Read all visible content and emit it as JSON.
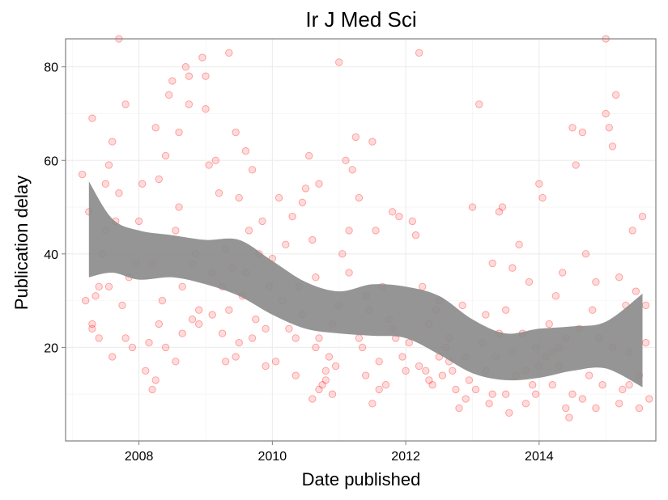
{
  "chart_data": {
    "type": "scatter",
    "title": "Ir J Med Sci",
    "xlabel": "Date published",
    "ylabel": "Publication delay",
    "xlim": [
      2006.9,
      2015.75
    ],
    "ylim": [
      0,
      86
    ],
    "x_ticks": [
      2008,
      2010,
      2012,
      2014
    ],
    "x_tick_labels": [
      "2008",
      "2010",
      "2012",
      "2014"
    ],
    "y_ticks": [
      20,
      40,
      60,
      80
    ],
    "y_tick_labels": [
      "20",
      "40",
      "60",
      "80"
    ],
    "grid": true,
    "point_color": "#ff0000",
    "band_color": "#8c8c8c",
    "smooth_band": {
      "x": [
        2007.25,
        2007.6,
        2008.0,
        2008.5,
        2009.0,
        2009.5,
        2010.0,
        2010.5,
        2011.0,
        2011.5,
        2012.0,
        2012.5,
        2013.0,
        2013.5,
        2014.0,
        2014.5,
        2015.0,
        2015.55
      ],
      "upper": [
        55.5,
        47.5,
        45.0,
        44.0,
        43.0,
        43.0,
        38.5,
        34.0,
        32.0,
        33.5,
        33.0,
        31.0,
        26.0,
        23.0,
        24.0,
        24.5,
        25.5,
        31.5
      ],
      "lower": [
        35.0,
        36.0,
        34.5,
        35.0,
        33.5,
        31.0,
        27.0,
        24.0,
        23.0,
        22.5,
        22.0,
        18.5,
        14.5,
        13.0,
        13.5,
        15.0,
        15.5,
        11.5
      ]
    },
    "points": [
      [
        2007.15,
        57
      ],
      [
        2007.2,
        30
      ],
      [
        2007.25,
        49
      ],
      [
        2007.3,
        69
      ],
      [
        2007.3,
        25
      ],
      [
        2007.35,
        31
      ],
      [
        2007.4,
        33
      ],
      [
        2007.45,
        40
      ],
      [
        2007.5,
        55
      ],
      [
        2007.55,
        59
      ],
      [
        2007.55,
        33
      ],
      [
        2007.6,
        64
      ],
      [
        2007.65,
        47
      ],
      [
        2007.7,
        53
      ],
      [
        2007.75,
        29
      ],
      [
        2007.8,
        72
      ],
      [
        2007.85,
        35
      ],
      [
        2007.9,
        20
      ],
      [
        2007.95,
        38
      ],
      [
        2008.0,
        47
      ],
      [
        2007.7,
        86
      ],
      [
        2007.3,
        24
      ],
      [
        2007.4,
        22
      ],
      [
        2007.5,
        45
      ],
      [
        2007.6,
        18
      ],
      [
        2007.8,
        22
      ],
      [
        2008.05,
        55
      ],
      [
        2008.1,
        15
      ],
      [
        2008.15,
        21
      ],
      [
        2008.2,
        38
      ],
      [
        2008.2,
        11
      ],
      [
        2008.25,
        67
      ],
      [
        2008.3,
        56
      ],
      [
        2008.35,
        30
      ],
      [
        2008.4,
        61
      ],
      [
        2008.45,
        74
      ],
      [
        2008.5,
        77
      ],
      [
        2008.55,
        45
      ],
      [
        2008.55,
        17
      ],
      [
        2008.6,
        66
      ],
      [
        2008.6,
        50
      ],
      [
        2008.65,
        23
      ],
      [
        2008.7,
        80
      ],
      [
        2008.75,
        72
      ],
      [
        2008.75,
        78
      ],
      [
        2008.8,
        26
      ],
      [
        2008.8,
        38
      ],
      [
        2008.85,
        40
      ],
      [
        2008.9,
        25
      ],
      [
        2008.95,
        82
      ],
      [
        2009.0,
        78
      ],
      [
        2009.0,
        71
      ],
      [
        2009.05,
        59
      ],
      [
        2009.1,
        27
      ],
      [
        2009.1,
        36
      ],
      [
        2008.4,
        20
      ],
      [
        2008.3,
        25
      ],
      [
        2008.25,
        13
      ],
      [
        2008.65,
        33
      ],
      [
        2008.9,
        28
      ],
      [
        2009.15,
        60
      ],
      [
        2009.2,
        53
      ],
      [
        2009.25,
        23
      ],
      [
        2009.3,
        41
      ],
      [
        2009.3,
        17
      ],
      [
        2009.35,
        83
      ],
      [
        2009.4,
        37
      ],
      [
        2009.45,
        66
      ],
      [
        2009.5,
        52
      ],
      [
        2009.5,
        21
      ],
      [
        2009.55,
        31
      ],
      [
        2009.6,
        62
      ],
      [
        2009.65,
        45
      ],
      [
        2009.7,
        58
      ],
      [
        2009.75,
        26
      ],
      [
        2009.8,
        40
      ],
      [
        2009.85,
        47
      ],
      [
        2009.9,
        24
      ],
      [
        2009.95,
        33
      ],
      [
        2010.0,
        39
      ],
      [
        2009.6,
        36
      ],
      [
        2009.35,
        28
      ],
      [
        2009.45,
        18
      ],
      [
        2009.7,
        22
      ],
      [
        2009.9,
        16
      ],
      [
        2009.25,
        33
      ],
      [
        2010.05,
        17
      ],
      [
        2010.1,
        52
      ],
      [
        2010.15,
        30
      ],
      [
        2010.2,
        42
      ],
      [
        2010.25,
        24
      ],
      [
        2010.3,
        48
      ],
      [
        2010.35,
        14
      ],
      [
        2010.4,
        33
      ],
      [
        2010.45,
        27
      ],
      [
        2010.5,
        54
      ],
      [
        2010.55,
        61
      ],
      [
        2010.6,
        43
      ],
      [
        2010.65,
        35
      ],
      [
        2010.65,
        20
      ],
      [
        2010.7,
        22
      ],
      [
        2010.7,
        55
      ],
      [
        2010.75,
        12
      ],
      [
        2010.8,
        13
      ],
      [
        2010.85,
        18
      ],
      [
        2010.9,
        25
      ],
      [
        2010.95,
        16
      ],
      [
        2011.0,
        29
      ],
      [
        2010.6,
        9
      ],
      [
        2010.7,
        11
      ],
      [
        2010.8,
        15
      ],
      [
        2010.9,
        10
      ],
      [
        2010.45,
        51
      ],
      [
        2010.35,
        22
      ],
      [
        2011.0,
        81
      ],
      [
        2011.05,
        40
      ],
      [
        2011.1,
        60
      ],
      [
        2011.15,
        36
      ],
      [
        2011.2,
        58
      ],
      [
        2011.25,
        65
      ],
      [
        2011.3,
        52
      ],
      [
        2011.35,
        20
      ],
      [
        2011.4,
        14
      ],
      [
        2011.45,
        28
      ],
      [
        2011.5,
        64
      ],
      [
        2011.55,
        45
      ],
      [
        2011.6,
        17
      ],
      [
        2011.65,
        33
      ],
      [
        2011.7,
        12
      ],
      [
        2011.75,
        26
      ],
      [
        2011.8,
        49
      ],
      [
        2011.85,
        22
      ],
      [
        2011.9,
        48
      ],
      [
        2011.95,
        18
      ],
      [
        2012.0,
        15
      ],
      [
        2011.5,
        8
      ],
      [
        2011.3,
        22
      ],
      [
        2011.4,
        31
      ],
      [
        2011.6,
        11
      ],
      [
        2011.8,
        24
      ],
      [
        2011.15,
        45
      ],
      [
        2012.05,
        21
      ],
      [
        2012.1,
        47
      ],
      [
        2012.15,
        44
      ],
      [
        2012.2,
        83
      ],
      [
        2012.25,
        33
      ],
      [
        2012.3,
        15
      ],
      [
        2012.35,
        25
      ],
      [
        2012.4,
        12
      ],
      [
        2012.45,
        28
      ],
      [
        2012.5,
        18
      ],
      [
        2012.55,
        14
      ],
      [
        2012.6,
        20
      ],
      [
        2012.65,
        22
      ],
      [
        2012.7,
        15
      ],
      [
        2012.75,
        11
      ],
      [
        2012.8,
        7
      ],
      [
        2012.85,
        29
      ],
      [
        2012.9,
        9
      ],
      [
        2012.95,
        13
      ],
      [
        2013.0,
        50
      ],
      [
        2012.5,
        30
      ],
      [
        2012.2,
        16
      ],
      [
        2012.35,
        13
      ],
      [
        2012.65,
        17
      ],
      [
        2012.9,
        18
      ],
      [
        2013.05,
        11
      ],
      [
        2013.1,
        72
      ],
      [
        2013.15,
        21
      ],
      [
        2013.2,
        15
      ],
      [
        2013.25,
        8
      ],
      [
        2013.3,
        38
      ],
      [
        2013.35,
        18
      ],
      [
        2013.4,
        49
      ],
      [
        2013.45,
        50
      ],
      [
        2013.5,
        10
      ],
      [
        2013.55,
        6
      ],
      [
        2013.6,
        37
      ],
      [
        2013.65,
        14
      ],
      [
        2013.7,
        42
      ],
      [
        2013.75,
        23
      ],
      [
        2013.8,
        8
      ],
      [
        2013.85,
        34
      ],
      [
        2013.9,
        12
      ],
      [
        2013.95,
        20
      ],
      [
        2014.0,
        16
      ],
      [
        2013.2,
        27
      ],
      [
        2013.3,
        10
      ],
      [
        2013.4,
        23
      ],
      [
        2013.6,
        19
      ],
      [
        2013.8,
        15
      ],
      [
        2013.95,
        10
      ],
      [
        2013.5,
        28
      ],
      [
        2014.0,
        55
      ],
      [
        2014.05,
        52
      ],
      [
        2014.1,
        18
      ],
      [
        2014.15,
        25
      ],
      [
        2014.2,
        12
      ],
      [
        2014.25,
        31
      ],
      [
        2014.3,
        20
      ],
      [
        2014.35,
        36
      ],
      [
        2014.4,
        7
      ],
      [
        2014.45,
        5
      ],
      [
        2014.5,
        67
      ],
      [
        2014.55,
        59
      ],
      [
        2014.6,
        24
      ],
      [
        2014.65,
        66
      ],
      [
        2014.7,
        40
      ],
      [
        2014.75,
        14
      ],
      [
        2014.8,
        28
      ],
      [
        2014.85,
        34
      ],
      [
        2014.9,
        22
      ],
      [
        2014.95,
        12
      ],
      [
        2015.0,
        70
      ],
      [
        2014.3,
        16
      ],
      [
        2014.5,
        10
      ],
      [
        2014.65,
        9
      ],
      [
        2014.85,
        7
      ],
      [
        2014.2,
        19
      ],
      [
        2014.4,
        22
      ],
      [
        2015.05,
        67
      ],
      [
        2015.1,
        63
      ],
      [
        2015.15,
        74
      ],
      [
        2015.2,
        35
      ],
      [
        2015.25,
        11
      ],
      [
        2015.3,
        29
      ],
      [
        2015.35,
        19
      ],
      [
        2015.4,
        45
      ],
      [
        2015.45,
        32
      ],
      [
        2015.5,
        14
      ],
      [
        2015.55,
        48
      ],
      [
        2015.6,
        21
      ],
      [
        2015.65,
        9
      ],
      [
        2015.0,
        86
      ],
      [
        2015.1,
        20
      ],
      [
        2015.2,
        8
      ],
      [
        2015.35,
        12
      ],
      [
        2015.5,
        7
      ],
      [
        2015.6,
        29
      ]
    ]
  }
}
